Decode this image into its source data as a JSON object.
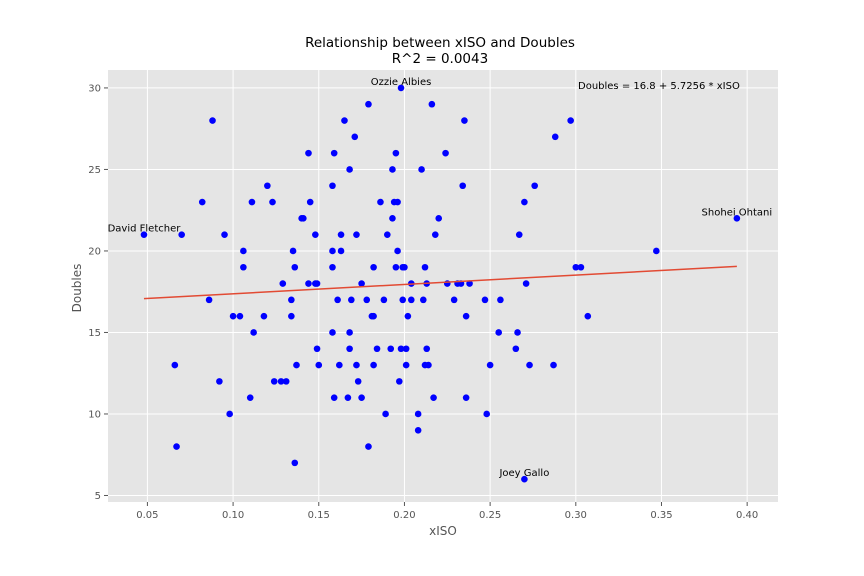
{
  "chart_data": {
    "type": "scatter",
    "title": "Relationship between xISO and Doubles",
    "subtitle": "R^2 = 0.0043",
    "xlabel": "xISO",
    "ylabel": "Doubles",
    "xlim": [
      0.027,
      0.418
    ],
    "ylim": [
      4.6,
      31.1
    ],
    "xticks": [
      0.05,
      0.1,
      0.15,
      0.2,
      0.25,
      0.3,
      0.35,
      0.4
    ],
    "xtick_labels": [
      "0.05",
      "0.10",
      "0.15",
      "0.20",
      "0.25",
      "0.30",
      "0.35",
      "0.40"
    ],
    "yticks": [
      5,
      10,
      15,
      20,
      25,
      30
    ],
    "ytick_labels": [
      "5",
      "10",
      "15",
      "20",
      "25",
      "30"
    ],
    "grid": true,
    "background": "#e5e5e5",
    "point_color": "#0000ff",
    "line_color": "#e24a33",
    "regression": {
      "label": "Doubles = 16.8 + 5.7256 * xISO",
      "intercept": 16.8,
      "slope": 5.7256,
      "x_range": [
        0.048,
        0.394
      ]
    },
    "annotations": [
      {
        "text": "Ozzie Albies",
        "x": 0.198,
        "y": 30
      },
      {
        "text": "David Fletcher",
        "x": 0.048,
        "y": 21
      },
      {
        "text": "Shohei Ohtani",
        "x": 0.394,
        "y": 22
      },
      {
        "text": "Joey Gallo",
        "x": 0.27,
        "y": 6
      }
    ],
    "points": [
      [
        0.048,
        21
      ],
      [
        0.066,
        13
      ],
      [
        0.067,
        8
      ],
      [
        0.07,
        21
      ],
      [
        0.082,
        23
      ],
      [
        0.086,
        17
      ],
      [
        0.088,
        28
      ],
      [
        0.092,
        12
      ],
      [
        0.095,
        21
      ],
      [
        0.098,
        10
      ],
      [
        0.1,
        16
      ],
      [
        0.104,
        16
      ],
      [
        0.106,
        20
      ],
      [
        0.106,
        19
      ],
      [
        0.11,
        11
      ],
      [
        0.111,
        23
      ],
      [
        0.112,
        15
      ],
      [
        0.118,
        16
      ],
      [
        0.12,
        24
      ],
      [
        0.123,
        23
      ],
      [
        0.124,
        12
      ],
      [
        0.128,
        12
      ],
      [
        0.129,
        18
      ],
      [
        0.131,
        12
      ],
      [
        0.134,
        16
      ],
      [
        0.134,
        17
      ],
      [
        0.135,
        20
      ],
      [
        0.136,
        19
      ],
      [
        0.136,
        7
      ],
      [
        0.137,
        13
      ],
      [
        0.14,
        22
      ],
      [
        0.141,
        22
      ],
      [
        0.144,
        26
      ],
      [
        0.144,
        18
      ],
      [
        0.145,
        23
      ],
      [
        0.148,
        18
      ],
      [
        0.148,
        21
      ],
      [
        0.149,
        14
      ],
      [
        0.149,
        18
      ],
      [
        0.15,
        13
      ],
      [
        0.158,
        20
      ],
      [
        0.158,
        24
      ],
      [
        0.158,
        19
      ],
      [
        0.158,
        15
      ],
      [
        0.159,
        11
      ],
      [
        0.159,
        26
      ],
      [
        0.161,
        17
      ],
      [
        0.162,
        13
      ],
      [
        0.163,
        21
      ],
      [
        0.163,
        20
      ],
      [
        0.165,
        28
      ],
      [
        0.167,
        11
      ],
      [
        0.168,
        14
      ],
      [
        0.168,
        25
      ],
      [
        0.168,
        15
      ],
      [
        0.169,
        17
      ],
      [
        0.171,
        27
      ],
      [
        0.172,
        13
      ],
      [
        0.172,
        21
      ],
      [
        0.173,
        12
      ],
      [
        0.175,
        11
      ],
      [
        0.175,
        18
      ],
      [
        0.178,
        17
      ],
      [
        0.179,
        8
      ],
      [
        0.179,
        29
      ],
      [
        0.181,
        16
      ],
      [
        0.182,
        16
      ],
      [
        0.182,
        19
      ],
      [
        0.182,
        13
      ],
      [
        0.184,
        14
      ],
      [
        0.186,
        23
      ],
      [
        0.188,
        17
      ],
      [
        0.189,
        10
      ],
      [
        0.19,
        21
      ],
      [
        0.192,
        14
      ],
      [
        0.193,
        25
      ],
      [
        0.193,
        22
      ],
      [
        0.194,
        23
      ],
      [
        0.195,
        26
      ],
      [
        0.195,
        19
      ],
      [
        0.196,
        23
      ],
      [
        0.196,
        20
      ],
      [
        0.197,
        12
      ],
      [
        0.198,
        30
      ],
      [
        0.198,
        14
      ],
      [
        0.199,
        19
      ],
      [
        0.199,
        17
      ],
      [
        0.2,
        19
      ],
      [
        0.201,
        13
      ],
      [
        0.201,
        14
      ],
      [
        0.202,
        16
      ],
      [
        0.204,
        17
      ],
      [
        0.204,
        18
      ],
      [
        0.208,
        9
      ],
      [
        0.208,
        10
      ],
      [
        0.21,
        25
      ],
      [
        0.211,
        17
      ],
      [
        0.212,
        13
      ],
      [
        0.212,
        19
      ],
      [
        0.213,
        14
      ],
      [
        0.213,
        18
      ],
      [
        0.214,
        13
      ],
      [
        0.216,
        29
      ],
      [
        0.217,
        11
      ],
      [
        0.218,
        21
      ],
      [
        0.22,
        22
      ],
      [
        0.224,
        26
      ],
      [
        0.225,
        18
      ],
      [
        0.229,
        17
      ],
      [
        0.231,
        18
      ],
      [
        0.233,
        18
      ],
      [
        0.234,
        24
      ],
      [
        0.235,
        28
      ],
      [
        0.236,
        11
      ],
      [
        0.236,
        16
      ],
      [
        0.238,
        18
      ],
      [
        0.247,
        17
      ],
      [
        0.248,
        10
      ],
      [
        0.25,
        13
      ],
      [
        0.255,
        15
      ],
      [
        0.256,
        17
      ],
      [
        0.265,
        14
      ],
      [
        0.266,
        15
      ],
      [
        0.267,
        21
      ],
      [
        0.27,
        23
      ],
      [
        0.27,
        6
      ],
      [
        0.271,
        18
      ],
      [
        0.273,
        13
      ],
      [
        0.276,
        24
      ],
      [
        0.287,
        13
      ],
      [
        0.288,
        27
      ],
      [
        0.297,
        28
      ],
      [
        0.3,
        19
      ],
      [
        0.303,
        19
      ],
      [
        0.307,
        16
      ],
      [
        0.347,
        20
      ],
      [
        0.394,
        22
      ]
    ]
  }
}
